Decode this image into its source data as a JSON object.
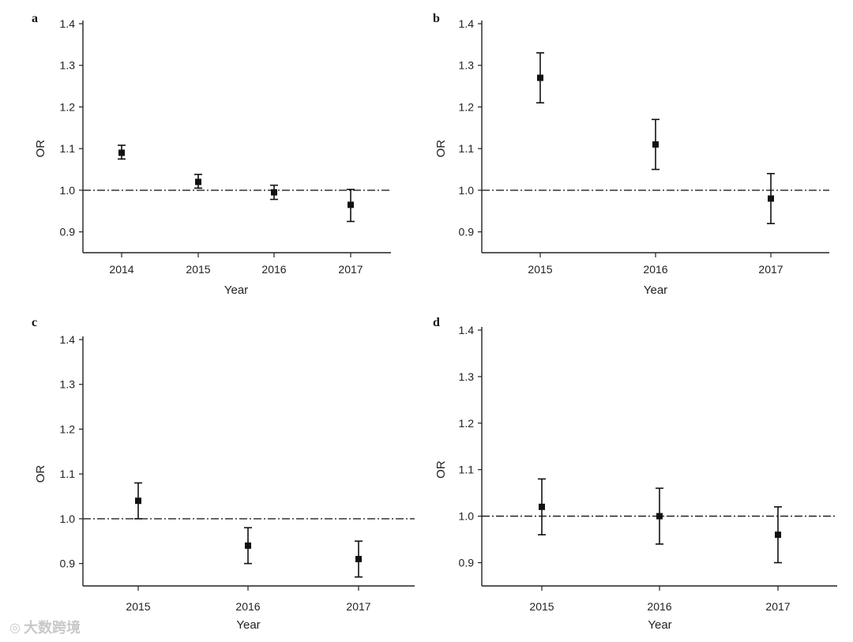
{
  "watermark": {
    "icon": "weibo-icon",
    "text": "大数跨境"
  },
  "colors": {
    "marker": "#111111",
    "axis": "#222222",
    "watermark": "#c8c8c8"
  },
  "chart_data": [
    {
      "panel": "a",
      "type": "scatter",
      "x": [
        "2014",
        "2015",
        "2016",
        "2017"
      ],
      "values": [
        1.09,
        1.02,
        0.995,
        0.965
      ],
      "ci_lower": [
        1.075,
        1.005,
        0.978,
        0.925
      ],
      "ci_upper": [
        1.108,
        1.038,
        1.012,
        1.002
      ],
      "ylabel": "OR",
      "xlabel": "Year",
      "ylim": [
        0.85,
        1.4
      ],
      "yticks": [
        "0.9",
        "1.0",
        "1.1",
        "1.2",
        "1.3",
        "1.4"
      ],
      "reference_line": 1.0
    },
    {
      "panel": "b",
      "type": "scatter",
      "x": [
        "2015",
        "2016",
        "2017"
      ],
      "values": [
        1.27,
        1.11,
        0.98
      ],
      "ci_lower": [
        1.21,
        1.05,
        0.92
      ],
      "ci_upper": [
        1.33,
        1.17,
        1.04
      ],
      "ylabel": "OR",
      "xlabel": "Year",
      "ylim": [
        0.85,
        1.4
      ],
      "yticks": [
        "0.9",
        "1.0",
        "1.1",
        "1.2",
        "1.3",
        "1.4"
      ],
      "reference_line": 1.0
    },
    {
      "panel": "c",
      "type": "scatter",
      "x": [
        "2015",
        "2016",
        "2017"
      ],
      "values": [
        1.04,
        0.94,
        0.91
      ],
      "ci_lower": [
        1.0,
        0.9,
        0.87
      ],
      "ci_upper": [
        1.08,
        0.98,
        0.95
      ],
      "ylabel": "OR",
      "xlabel": "Year",
      "ylim": [
        0.85,
        1.4
      ],
      "yticks": [
        "0.9",
        "1.0",
        "1.1",
        "1.2",
        "1.3",
        "1.4"
      ],
      "reference_line": 1.0
    },
    {
      "panel": "d",
      "type": "scatter",
      "x": [
        "2015",
        "2016",
        "2017"
      ],
      "values": [
        1.02,
        1.0,
        0.96
      ],
      "ci_lower": [
        0.96,
        0.94,
        0.9
      ],
      "ci_upper": [
        1.08,
        1.06,
        1.02
      ],
      "ylabel": "OR",
      "xlabel": "Year",
      "ylim": [
        0.85,
        1.4
      ],
      "yticks": [
        "0.9",
        "1.0",
        "1.1",
        "1.2",
        "1.3",
        "1.4"
      ],
      "reference_line": 1.0
    }
  ]
}
